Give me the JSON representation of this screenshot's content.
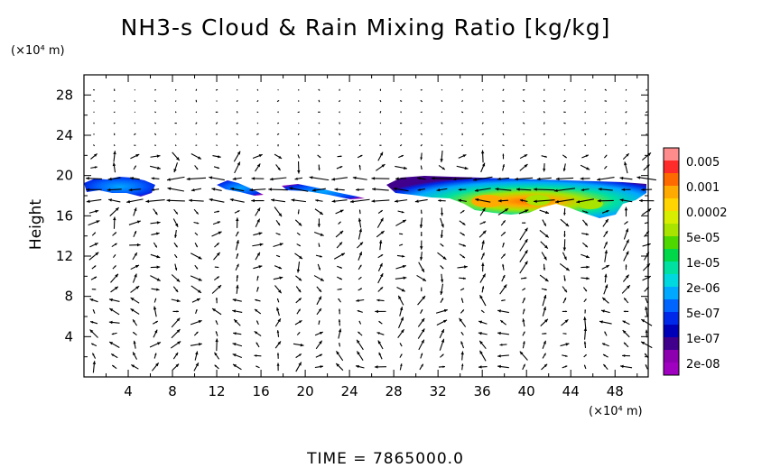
{
  "chart_data": {
    "type": "heatmap",
    "title": "NH3-s Cloud & Rain Mixing Ratio [kg/kg]",
    "ylabel": "Height",
    "x_unit_label": "(×10⁴ m)",
    "y_unit_label": "(×10⁴ m)",
    "xlim": [
      0,
      51
    ],
    "ylim": [
      0,
      30
    ],
    "xticks": [
      4,
      8,
      12,
      16,
      20,
      24,
      28,
      32,
      36,
      40,
      44,
      48
    ],
    "yticks": [
      4,
      8,
      12,
      16,
      20,
      24,
      28
    ],
    "footer": "TIME = 7865000.0",
    "colorbar": {
      "labels": [
        "0.005",
        "0.001",
        "0.0002",
        "5e-05",
        "1e-05",
        "2e-06",
        "5e-07",
        "1e-07",
        "2e-08"
      ],
      "colors": [
        "#ff8c8c",
        "#ff2a2a",
        "#ff6a00",
        "#ffaa00",
        "#ffd400",
        "#d8ee00",
        "#a8e400",
        "#4fd800",
        "#00d84a",
        "#00e0a0",
        "#00d8e0",
        "#00a8ff",
        "#0064ff",
        "#0028e8",
        "#0000b8",
        "#40008c",
        "#8c00b0",
        "#a000c0"
      ]
    },
    "cloud_patches": [
      {
        "x0": 0.2,
        "x1": 6.3,
        "y_center": 18.6,
        "peak": "1e-07"
      },
      {
        "x0": 12.5,
        "x1": 16.5,
        "y_center": 18.7,
        "peak": "1e-07"
      },
      {
        "x0": 18.0,
        "x1": 25.8,
        "y_center": 18.3,
        "peak": "1e-07"
      },
      {
        "x0": 27.8,
        "x1": 51.0,
        "y_center": 18.2,
        "peak": "0.0002"
      }
    ]
  }
}
